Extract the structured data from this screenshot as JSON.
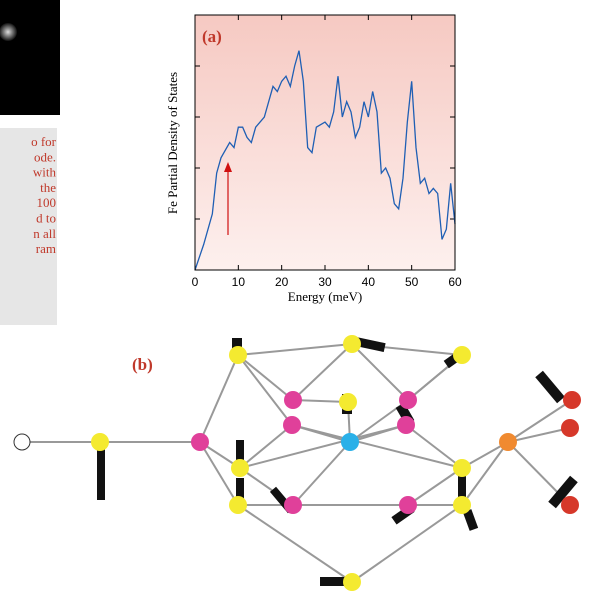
{
  "sidebar": {
    "caption_lines": [
      "o for",
      "ode.",
      "with",
      "the",
      "100",
      "d to",
      "n all",
      "ram"
    ]
  },
  "chart_data": {
    "type": "line",
    "annotation": "(a)",
    "x_label": "Energy (meV)",
    "y_label": "Fe Partial Density of States",
    "x": [
      0,
      2,
      4,
      5,
      6,
      8,
      9,
      10,
      11,
      12,
      13,
      14,
      16,
      17,
      18,
      19,
      20,
      21,
      22,
      23,
      24,
      25,
      26,
      27,
      28,
      30,
      31,
      32,
      33,
      34,
      35,
      36,
      37,
      38,
      39,
      40,
      41,
      42,
      43,
      44,
      45,
      46,
      47,
      48,
      49,
      50,
      51,
      52,
      53,
      54,
      55,
      56,
      57,
      58,
      59,
      60
    ],
    "series": [
      {
        "color": "#1f5fb4",
        "values": [
          0,
          0.5,
          1.1,
          1.9,
          2.2,
          2.5,
          2.4,
          2.8,
          2.8,
          2.6,
          2.5,
          2.8,
          3.0,
          3.3,
          3.6,
          3.5,
          3.7,
          3.8,
          3.6,
          4.0,
          4.3,
          3.7,
          2.4,
          2.3,
          2.8,
          2.9,
          2.8,
          3.1,
          3.8,
          3.0,
          3.3,
          3.1,
          2.6,
          2.8,
          3.3,
          3.0,
          3.5,
          3.1,
          1.9,
          2.0,
          1.8,
          1.3,
          1.2,
          1.8,
          2.9,
          3.7,
          2.4,
          1.7,
          1.8,
          1.5,
          1.6,
          1.5,
          0.6,
          0.8,
          1.7,
          0.9
        ]
      }
    ],
    "xlim": [
      0,
      60
    ],
    "xticks": [
      0,
      10,
      20,
      30,
      40,
      50,
      60
    ],
    "ylim": [
      0,
      5
    ],
    "yticks": [
      1,
      2,
      3,
      4
    ]
  },
  "diagram": {
    "label": "(b)"
  }
}
